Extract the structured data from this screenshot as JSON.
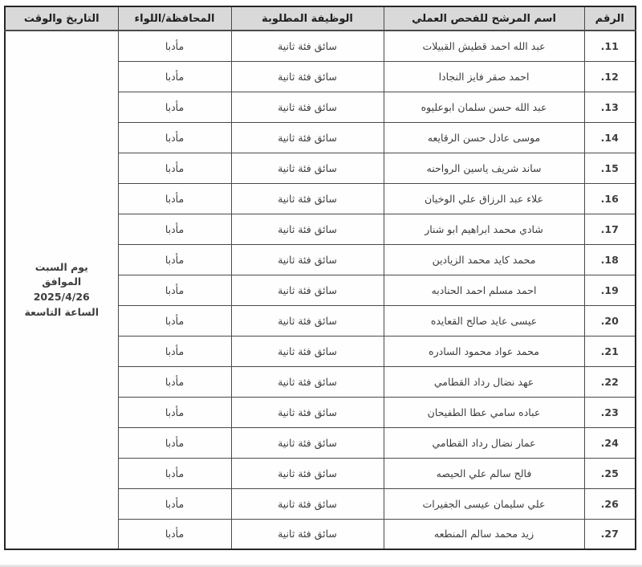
{
  "table": {
    "headers": {
      "number": "الرقم",
      "candidate_name": "اسم المرشح للفحص العملي",
      "required_job": "الوظيفة المطلوبة",
      "governorate": "المحافظة/اللواء",
      "date_time": "التاريخ والوقت"
    },
    "rows": [
      {
        "num": ".11",
        "name": "عبد الله احمد قطيش القبيلات",
        "job": "سائق فئة ثانية",
        "gov": "مأدبا"
      },
      {
        "num": ".12",
        "name": "احمد صقر فايز النجادا",
        "job": "سائق فئة ثانية",
        "gov": "مأدبا"
      },
      {
        "num": ".13",
        "name": "عبد الله حسن سلمان ابوعليوه",
        "job": "سائق فئة ثانية",
        "gov": "مأدبا"
      },
      {
        "num": ".14",
        "name": "موسى عادل حسن الرقايعه",
        "job": "سائق فئة ثانية",
        "gov": "مأدبا"
      },
      {
        "num": ".15",
        "name": "ساند شريف ياسين الرواحنه",
        "job": "سائق فئة ثانية",
        "gov": "مأدبا"
      },
      {
        "num": ".16",
        "name": "علاء عبد الرزاق علي الوخيان",
        "job": "سائق فئة ثانية",
        "gov": "مأدبا"
      },
      {
        "num": ".17",
        "name": "شادي محمد ابراهيم ابو شنار",
        "job": "سائق فئة ثانية",
        "gov": "مأدبا"
      },
      {
        "num": ".18",
        "name": "محمد كايد محمد الزيادين",
        "job": "سائق فئة ثانية",
        "gov": "مأدبا"
      },
      {
        "num": ".19",
        "name": "احمد مسلم احمد الحنادبه",
        "job": "سائق فئة ثانية",
        "gov": "مأدبا"
      },
      {
        "num": ".20",
        "name": "عيسى عايد صالح القعايده",
        "job": "سائق فئة ثانية",
        "gov": "مأدبا"
      },
      {
        "num": ".21",
        "name": "محمد عواد محمود السادره",
        "job": "سائق فئة ثانية",
        "gov": "مأدبا"
      },
      {
        "num": ".22",
        "name": "عهد نضال رداد القطامي",
        "job": "سائق فئة ثانية",
        "gov": "مأدبا"
      },
      {
        "num": ".23",
        "name": "عباده سامي عطا الطفيحان",
        "job": "سائق فئة ثانية",
        "gov": "مأدبا"
      },
      {
        "num": ".24",
        "name": "عمار نضال رداد القطامي",
        "job": "سائق فئة ثانية",
        "gov": "مأدبا"
      },
      {
        "num": ".25",
        "name": "فالح سالم علي الحيصه",
        "job": "سائق فئة ثانية",
        "gov": "مأدبا"
      },
      {
        "num": ".26",
        "name": "علي سليمان عيسى الجفيرات",
        "job": "سائق فئة ثانية",
        "gov": "مأدبا"
      },
      {
        "num": ".27",
        "name": "زيد محمد سالم المنطعه",
        "job": "سائق فئة ثانية",
        "gov": "مأدبا"
      }
    ],
    "schedule": {
      "day": "يوم السبت",
      "corresponding": "الموافق",
      "date": "2025/4/26",
      "time": "الساعة التاسعة"
    }
  },
  "colors": {
    "header_bg": "#d9d9d9",
    "border": "#4a4a4a",
    "outer_border": "#262626",
    "text": "#3d3d3d"
  }
}
